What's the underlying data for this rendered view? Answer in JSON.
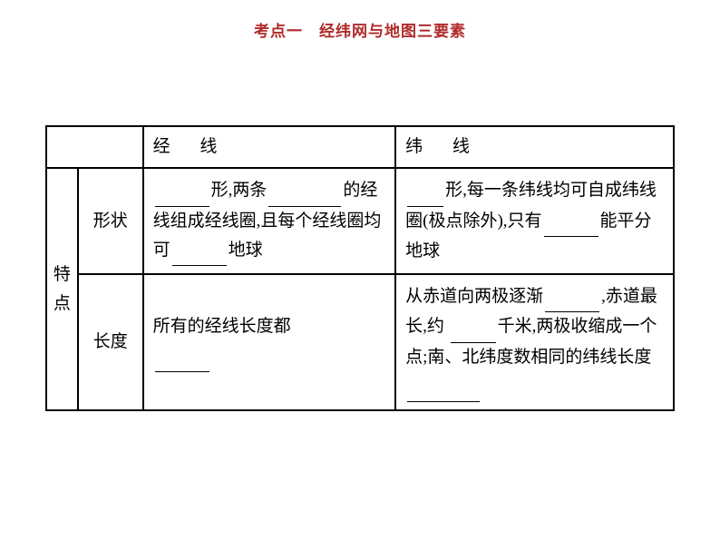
{
  "title": {
    "text": "考点一　经纬网与地图三要素",
    "color": "#b02a2a",
    "fontsize": 17
  },
  "table": {
    "border_color": "#000000",
    "border_width": 2,
    "fontsize": 19,
    "line_height": 1.7,
    "background_color": "#ffffff",
    "columns": {
      "category_width": 32,
      "attr_width": 66,
      "content1_width": 256,
      "content2_width": 282
    },
    "header": {
      "empty_cols": 2,
      "col1": "经",
      "col1_suffix": "线",
      "col2": "纬",
      "col2_suffix": "线",
      "letter_spacing": 28
    },
    "category_label": "特点",
    "rows": [
      {
        "attr": "形状",
        "jingxian": {
          "part1": "形,两条",
          "part2": "的经线组成经线圈,且每个经线圈均可",
          "part3": "地球",
          "blank1_width": 60,
          "blank2_width": 80,
          "blank3_width": 60
        },
        "weixian": {
          "part1": "形,每一条纬线均可自成纬线圈(极点除外),只有",
          "part2": "能平分地球",
          "blank1_width": 40,
          "blank2_width": 60
        }
      },
      {
        "attr": "长度",
        "jingxian": {
          "part1": "所有的经线长度都",
          "blank1_width": 60
        },
        "weixian": {
          "part1": "从赤道向两极逐渐",
          "part2": ",赤道最长,约 ",
          "part3": "千米,两极收缩成一个点;南、北纬度数相同的纬线长度",
          "blank1_width": 60,
          "blank2_width": 50,
          "blank3_width": 80
        }
      }
    ]
  }
}
